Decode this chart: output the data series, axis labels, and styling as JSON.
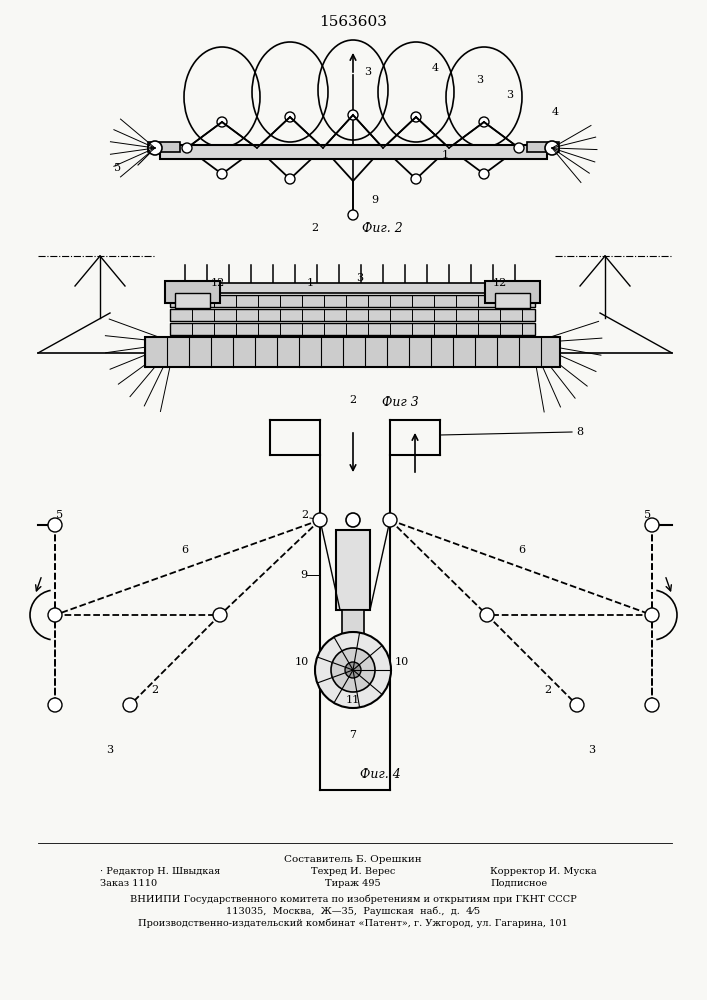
{
  "title": "1563603",
  "bg_color": "#f8f8f5",
  "footer_line1": "Составитель Б. Орешкин",
  "footer_line2_left": "· Редактор Н. Швыдкая",
  "footer_line2_mid": "Техред И. Верес",
  "footer_line2_right": "Корректор И. Муска",
  "footer_line3_left": "Заказ 1110",
  "footer_line3_mid": "Тираж 495",
  "footer_line3_right": "Подписное",
  "footer_line4": "ВНИИПИ Государственного комитета по изобретениям и открытиям при ГКНТ СССР",
  "footer_line5": "113035,  Москва,  Ж—35,  Раушская  наб.,  д.  4⁄5",
  "footer_line6": "Производственно-издательский комбинат «Патент», г. Ужгород, ул. Гагарина, 101"
}
